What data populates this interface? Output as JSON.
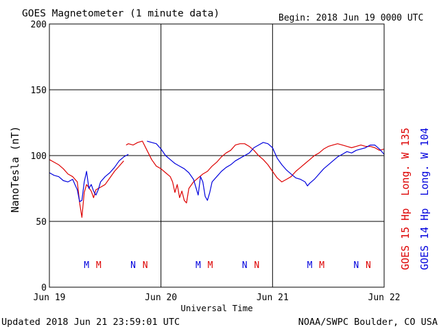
{
  "header": {
    "title": "GOES Magnetometer (1 minute data)",
    "begin": "Begin:  2018 Jun 19 0000 UTC"
  },
  "footer": {
    "updated": "Updated 2018 Jun 21 23:59:01 UTC",
    "credit": "NOAA/SWPC Boulder, CO USA"
  },
  "colors": {
    "goes15": "#dd0000",
    "goes14": "#0000dd",
    "axis": "#000000",
    "background": "#ffffff"
  },
  "chart_data": {
    "type": "line",
    "title": "GOES Magnetometer (1 minute data)",
    "xlabel": "Universal Time",
    "ylabel": "NanoTesla (nT)",
    "x_ticks": [
      "Jun 19",
      "Jun 20",
      "Jun 21",
      "Jun 22"
    ],
    "xlim": [
      0,
      72
    ],
    "ylim": [
      0,
      200
    ],
    "y_ticks": [
      0,
      50,
      100,
      150,
      200
    ],
    "grid": true,
    "legend_placement": "right (vertical)",
    "series": [
      {
        "name": "GOES 15 Hp  Long. W 135",
        "color": "#dd0000",
        "points": [
          [
            0,
            97
          ],
          [
            1,
            95
          ],
          [
            2,
            93
          ],
          [
            3,
            90
          ],
          [
            4,
            86
          ],
          [
            5,
            84
          ],
          [
            6,
            80
          ],
          [
            6.5,
            64
          ],
          [
            7,
            53
          ],
          [
            7.5,
            72
          ],
          [
            8,
            78
          ],
          [
            9,
            73
          ],
          [
            9.5,
            68
          ],
          [
            10,
            74
          ],
          [
            11,
            76
          ],
          [
            12,
            78
          ],
          [
            13,
            83
          ],
          [
            14,
            88
          ],
          [
            15,
            92
          ],
          [
            16,
            96
          ],
          [
            null,
            null
          ],
          [
            16.5,
            108
          ],
          [
            17,
            109
          ],
          [
            18,
            108
          ],
          [
            19,
            110
          ],
          [
            20,
            111
          ],
          [
            21,
            104
          ],
          [
            22,
            97
          ],
          [
            23,
            92
          ],
          [
            24,
            90
          ],
          [
            25,
            87
          ],
          [
            26,
            84
          ],
          [
            26.5,
            80
          ],
          [
            27,
            72
          ],
          [
            27.5,
            78
          ],
          [
            28,
            68
          ],
          [
            28.5,
            73
          ],
          [
            29,
            66
          ],
          [
            29.5,
            64
          ],
          [
            30,
            75
          ],
          [
            31,
            80
          ],
          [
            32,
            83
          ],
          [
            33,
            86
          ],
          [
            34,
            88
          ],
          [
            35,
            92
          ],
          [
            36,
            95
          ],
          [
            37,
            99
          ],
          [
            38,
            102
          ],
          [
            39,
            104
          ],
          [
            40,
            108
          ],
          [
            41,
            109
          ],
          [
            42,
            109
          ],
          [
            43,
            107
          ],
          [
            44,
            104
          ],
          [
            45,
            100
          ],
          [
            46,
            97
          ],
          [
            47,
            93
          ],
          [
            48,
            88
          ],
          [
            49,
            83
          ],
          [
            50,
            80
          ],
          [
            51,
            82
          ],
          [
            52,
            84
          ],
          [
            53,
            88
          ],
          [
            54,
            91
          ],
          [
            55,
            94
          ],
          [
            56,
            97
          ],
          [
            57,
            100
          ],
          [
            58,
            102
          ],
          [
            59,
            105
          ],
          [
            60,
            107
          ],
          [
            61,
            108
          ],
          [
            62,
            109
          ],
          [
            63,
            108
          ],
          [
            64,
            107
          ],
          [
            65,
            106
          ],
          [
            66,
            107
          ],
          [
            67,
            108
          ],
          [
            68,
            107
          ],
          [
            69,
            107
          ],
          [
            70,
            106
          ],
          [
            71,
            104
          ],
          [
            72,
            105
          ]
        ]
      },
      {
        "name": "GOES 14 Hp  Long. W 104",
        "color": "#0000dd",
        "points": [
          [
            0,
            87
          ],
          [
            1,
            85
          ],
          [
            2,
            84
          ],
          [
            3,
            81
          ],
          [
            4,
            80
          ],
          [
            5,
            82
          ],
          [
            6,
            74
          ],
          [
            6.5,
            65
          ],
          [
            7,
            66
          ],
          [
            7.5,
            80
          ],
          [
            8,
            88
          ],
          [
            8.5,
            75
          ],
          [
            9,
            78
          ],
          [
            9.5,
            73
          ],
          [
            10,
            70
          ],
          [
            10.5,
            74
          ],
          [
            11,
            80
          ],
          [
            12,
            84
          ],
          [
            13,
            87
          ],
          [
            14,
            91
          ],
          [
            15,
            96
          ],
          [
            16,
            99
          ],
          [
            17,
            101
          ],
          [
            null,
            null
          ],
          [
            21,
            111
          ],
          [
            22,
            110
          ],
          [
            23,
            109
          ],
          [
            24,
            105
          ],
          [
            25,
            100
          ],
          [
            26,
            97
          ],
          [
            27,
            94
          ],
          [
            28,
            92
          ],
          [
            29,
            90
          ],
          [
            30,
            87
          ],
          [
            31,
            82
          ],
          [
            31.5,
            76
          ],
          [
            32,
            70
          ],
          [
            32.5,
            84
          ],
          [
            33,
            80
          ],
          [
            33.5,
            69
          ],
          [
            34,
            66
          ],
          [
            34.5,
            72
          ],
          [
            35,
            80
          ],
          [
            36,
            84
          ],
          [
            37,
            88
          ],
          [
            38,
            91
          ],
          [
            39,
            93
          ],
          [
            40,
            96
          ],
          [
            41,
            98
          ],
          [
            42,
            100
          ],
          [
            43,
            102
          ],
          [
            44,
            106
          ],
          [
            45,
            108
          ],
          [
            46,
            110
          ],
          [
            47,
            109
          ],
          [
            48,
            106
          ],
          [
            49,
            98
          ],
          [
            50,
            93
          ],
          [
            51,
            89
          ],
          [
            52,
            86
          ],
          [
            53,
            83
          ],
          [
            54,
            82
          ],
          [
            55,
            80
          ],
          [
            55.5,
            77
          ],
          [
            56,
            79
          ],
          [
            57,
            82
          ],
          [
            58,
            86
          ],
          [
            59,
            90
          ],
          [
            60,
            93
          ],
          [
            61,
            96
          ],
          [
            62,
            99
          ],
          [
            63,
            101
          ],
          [
            64,
            103
          ],
          [
            65,
            102
          ],
          [
            66,
            104
          ],
          [
            67,
            105
          ],
          [
            68,
            106
          ],
          [
            69,
            108
          ],
          [
            70,
            108
          ],
          [
            71,
            105
          ],
          [
            72,
            101
          ]
        ]
      }
    ],
    "event_markers": [
      {
        "label": "M",
        "x": 8,
        "satellite": "GOES 14",
        "color": "#0000dd"
      },
      {
        "label": "M",
        "x": 10.6,
        "satellite": "GOES 15",
        "color": "#dd0000"
      },
      {
        "label": "N",
        "x": 18,
        "satellite": "GOES 14",
        "color": "#0000dd"
      },
      {
        "label": "N",
        "x": 20.6,
        "satellite": "GOES 15",
        "color": "#dd0000"
      },
      {
        "label": "M",
        "x": 32,
        "satellite": "GOES 14",
        "color": "#0000dd"
      },
      {
        "label": "M",
        "x": 34.6,
        "satellite": "GOES 15",
        "color": "#dd0000"
      },
      {
        "label": "N",
        "x": 42,
        "satellite": "GOES 14",
        "color": "#0000dd"
      },
      {
        "label": "N",
        "x": 44.6,
        "satellite": "GOES 15",
        "color": "#dd0000"
      },
      {
        "label": "M",
        "x": 56,
        "satellite": "GOES 14",
        "color": "#0000dd"
      },
      {
        "label": "M",
        "x": 58.6,
        "satellite": "GOES 15",
        "color": "#dd0000"
      },
      {
        "label": "N",
        "x": 66,
        "satellite": "GOES 14",
        "color": "#0000dd"
      },
      {
        "label": "N",
        "x": 68.6,
        "satellite": "GOES 15",
        "color": "#dd0000"
      }
    ]
  }
}
